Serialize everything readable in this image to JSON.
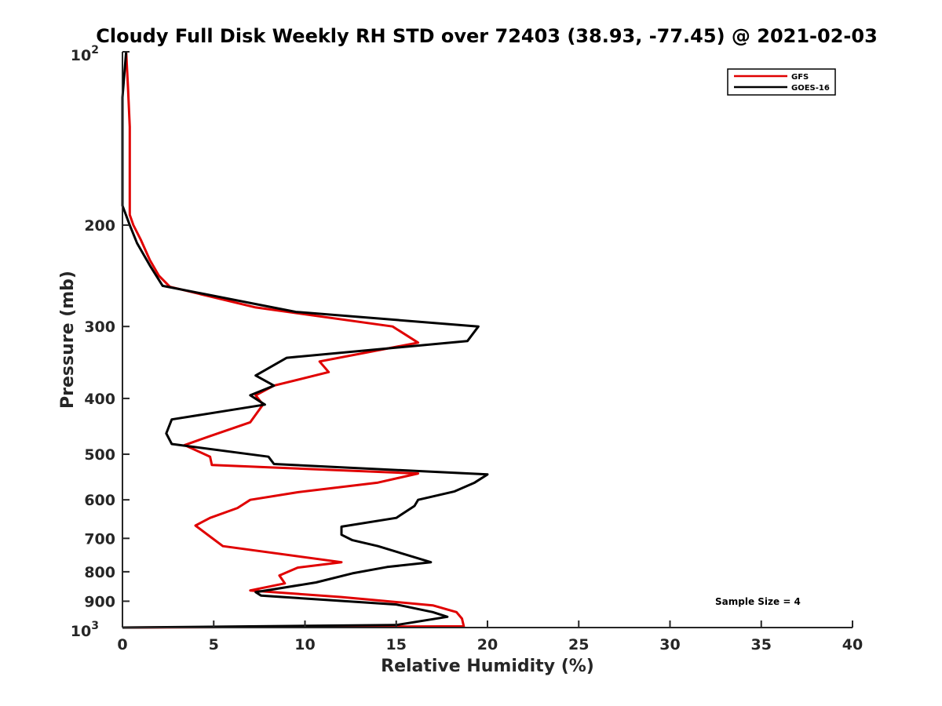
{
  "chart_data": {
    "type": "line",
    "title": "Cloudy Full Disk Weekly RH STD over 72403 (38.93, -77.45) @ 2021-02-03",
    "xlabel": "Relative Humidity (%)",
    "ylabel": "Pressure (mb)",
    "xlim": [
      0,
      40
    ],
    "ylim": [
      100,
      1000
    ],
    "y_scale": "log",
    "y_reversed": true,
    "x_ticks": [
      {
        "value": 0,
        "label": "0"
      },
      {
        "value": 5,
        "label": "5"
      },
      {
        "value": 10,
        "label": "10"
      },
      {
        "value": 15,
        "label": "15"
      },
      {
        "value": 20,
        "label": "20"
      },
      {
        "value": 25,
        "label": "25"
      },
      {
        "value": 30,
        "label": "30"
      },
      {
        "value": 35,
        "label": "35"
      },
      {
        "value": 40,
        "label": "40"
      }
    ],
    "y_ticks": [
      {
        "value": 100,
        "label": "10",
        "sup": "2"
      },
      {
        "value": 200,
        "label": "200",
        "sup": ""
      },
      {
        "value": 300,
        "label": "300",
        "sup": ""
      },
      {
        "value": 400,
        "label": "400",
        "sup": ""
      },
      {
        "value": 500,
        "label": "500",
        "sup": ""
      },
      {
        "value": 600,
        "label": "600",
        "sup": ""
      },
      {
        "value": 700,
        "label": "700",
        "sup": ""
      },
      {
        "value": 800,
        "label": "800",
        "sup": ""
      },
      {
        "value": 900,
        "label": "900",
        "sup": ""
      },
      {
        "value": 1000,
        "label": "10",
        "sup": "3"
      }
    ],
    "grid": false,
    "legend_position": "top-right",
    "series": [
      {
        "name": "GFS",
        "color": "#e00000",
        "points": [
          [
            0.2,
            100
          ],
          [
            0.3,
            115
          ],
          [
            0.4,
            135
          ],
          [
            0.4,
            160
          ],
          [
            0.4,
            180
          ],
          [
            0.4,
            192
          ],
          [
            0.6,
            200
          ],
          [
            1.0,
            212
          ],
          [
            1.5,
            230
          ],
          [
            2.0,
            245
          ],
          [
            2.6,
            256
          ],
          [
            7.3,
            278
          ],
          [
            14.8,
            300
          ],
          [
            16.2,
            320
          ],
          [
            10.8,
            345
          ],
          [
            11.3,
            360
          ],
          [
            8.3,
            380
          ],
          [
            7.3,
            395
          ],
          [
            7.7,
            410
          ],
          [
            7.0,
            440
          ],
          [
            4.8,
            465
          ],
          [
            3.4,
            482
          ],
          [
            4.8,
            505
          ],
          [
            4.9,
            522
          ],
          [
            16.2,
            540
          ],
          [
            14.0,
            560
          ],
          [
            9.6,
            582
          ],
          [
            7.0,
            600
          ],
          [
            6.3,
            620
          ],
          [
            4.8,
            645
          ],
          [
            4.0,
            665
          ],
          [
            4.8,
            695
          ],
          [
            5.5,
            722
          ],
          [
            12.0,
            770
          ],
          [
            9.6,
            787
          ],
          [
            8.6,
            812
          ],
          [
            8.9,
            838
          ],
          [
            7.0,
            862
          ],
          [
            12.0,
            885
          ],
          [
            17.0,
            915
          ],
          [
            18.3,
            940
          ],
          [
            18.6,
            965
          ],
          [
            18.7,
            995
          ],
          [
            0.0,
            1000
          ]
        ]
      },
      {
        "name": "GOES-16",
        "color": "#000000",
        "points": [
          [
            0.2,
            100
          ],
          [
            0.0,
            120
          ],
          [
            0.0,
            150
          ],
          [
            0.0,
            185
          ],
          [
            0.4,
            200
          ],
          [
            0.8,
            215
          ],
          [
            1.5,
            235
          ],
          [
            2.2,
            255
          ],
          [
            9.5,
            283
          ],
          [
            19.5,
            300
          ],
          [
            18.9,
            318
          ],
          [
            9.0,
            340
          ],
          [
            7.3,
            365
          ],
          [
            8.3,
            380
          ],
          [
            7.0,
            395
          ],
          [
            7.8,
            410
          ],
          [
            2.7,
            435
          ],
          [
            2.4,
            460
          ],
          [
            2.7,
            480
          ],
          [
            8.0,
            505
          ],
          [
            8.3,
            520
          ],
          [
            20.0,
            542
          ],
          [
            19.3,
            560
          ],
          [
            18.2,
            580
          ],
          [
            16.2,
            600
          ],
          [
            16.0,
            615
          ],
          [
            15.0,
            645
          ],
          [
            12.0,
            668
          ],
          [
            12.0,
            690
          ],
          [
            12.6,
            705
          ],
          [
            14.0,
            722
          ],
          [
            16.9,
            770
          ],
          [
            14.5,
            785
          ],
          [
            12.6,
            805
          ],
          [
            10.6,
            835
          ],
          [
            7.3,
            868
          ],
          [
            7.6,
            880
          ],
          [
            15.0,
            912
          ],
          [
            17.0,
            940
          ],
          [
            17.8,
            958
          ],
          [
            15.0,
            990
          ],
          [
            0.0,
            1000
          ]
        ]
      }
    ],
    "annotation": "Sample Size = 4"
  }
}
